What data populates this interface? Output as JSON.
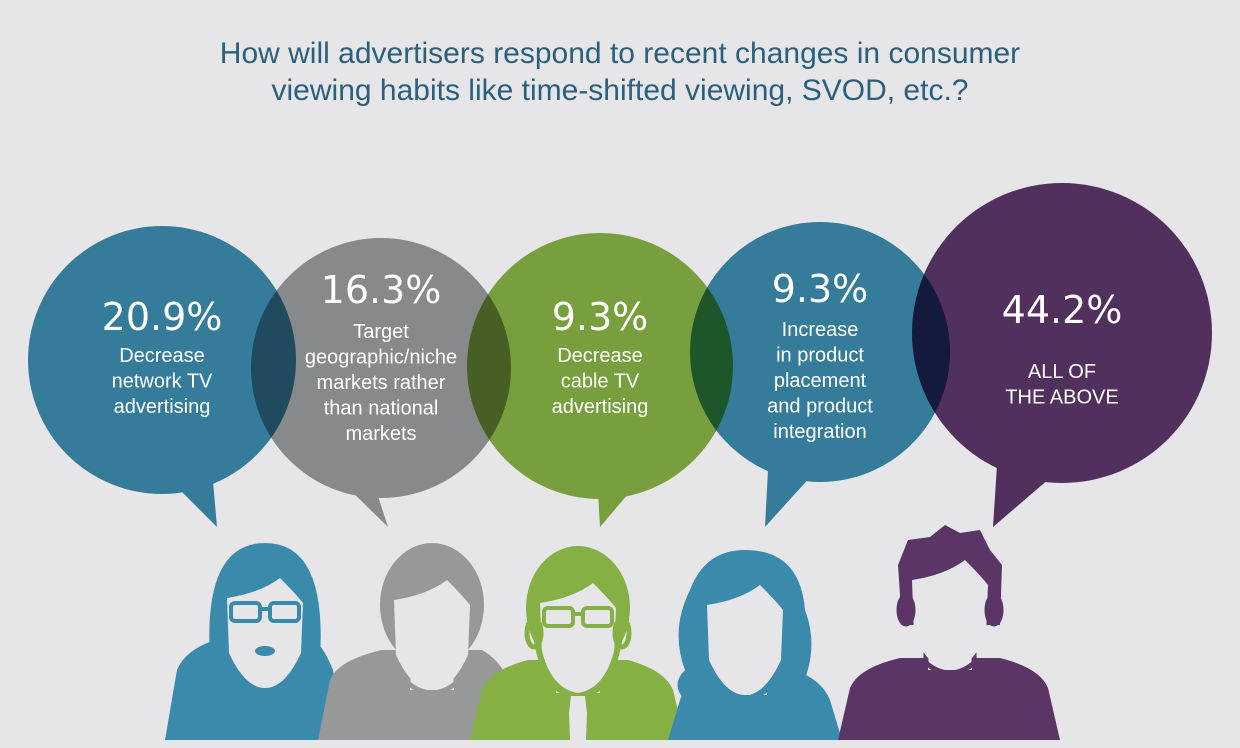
{
  "title": {
    "line1": "How will advertisers respond to recent changes in consumer",
    "line2": "viewing habits like time-shifted viewing, SVOD, etc.?"
  },
  "colors": {
    "background": "#e6e6e8",
    "title": "#2b5f7e",
    "blue": "#3a8aab",
    "gray": "#979898",
    "green": "#85b043",
    "purple": "#5b3566"
  },
  "chart_data": {
    "type": "bar",
    "title": "How will advertisers respond to recent changes in consumer viewing habits like time-shifted viewing, SVOD, etc.?",
    "unit": "%",
    "categories": [
      "Decrease network TV advertising",
      "Target geographic/niche markets rather than national markets",
      "Decrease cable TV advertising",
      "Increase in product placement and product integration",
      "ALL OF THE ABOVE"
    ],
    "values": [
      20.9,
      16.3,
      9.3,
      9.3,
      44.2
    ],
    "bubbles": [
      {
        "pct": "20.9%",
        "lines": [
          "Decrease",
          "network TV",
          "advertising"
        ],
        "color": "#3a8aab"
      },
      {
        "pct": "16.3%",
        "lines": [
          "Target",
          "geographic/niche",
          "markets rather",
          "than national",
          "markets"
        ],
        "color": "#979898"
      },
      {
        "pct": "9.3%",
        "lines": [
          "Decrease",
          "cable TV",
          "advertising"
        ],
        "color": "#85b043"
      },
      {
        "pct": "9.3%",
        "lines": [
          "Increase",
          "in product",
          "placement",
          "and product",
          "integration"
        ],
        "color": "#3a8aab"
      },
      {
        "pct": "44.2%",
        "lines": [
          "ALL OF",
          "THE ABOVE"
        ],
        "color": "#5b3566"
      }
    ]
  }
}
